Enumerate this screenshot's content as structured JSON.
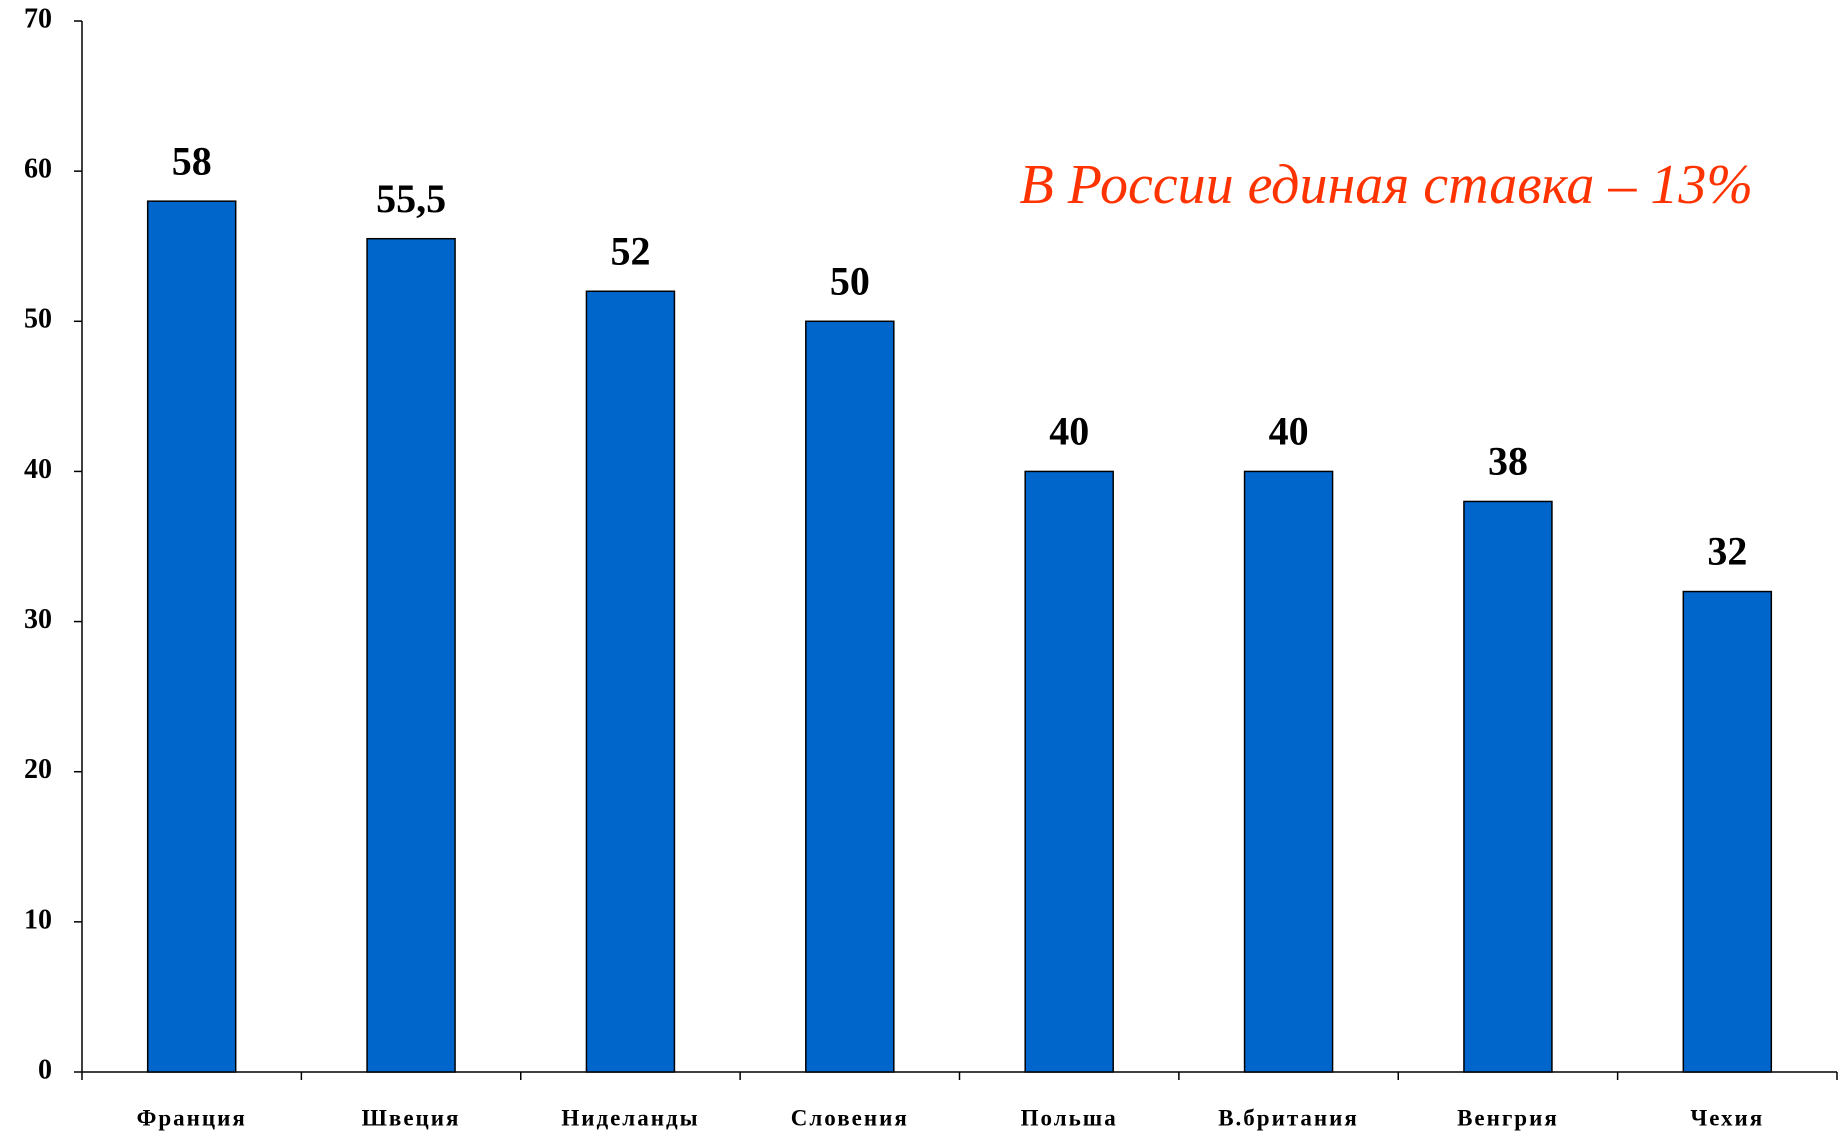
{
  "chart_data": {
    "type": "bar",
    "annotation": "В России единая ставка – 13%",
    "categories": [
      "Франция",
      "Швеция",
      "Ниделанды",
      "Словения",
      "Польша",
      "В.британия",
      "Венгрия",
      "Чехия"
    ],
    "values": [
      58,
      55.5,
      52,
      50,
      40,
      40,
      38,
      32
    ],
    "value_labels": [
      "58",
      "55,5",
      "52",
      "50",
      "40",
      "40",
      "38",
      "32"
    ],
    "color": "#0066cc",
    "ylim": [
      0,
      70
    ],
    "yticks": [
      0,
      10,
      20,
      30,
      40,
      50,
      60,
      70
    ],
    "grid": false
  }
}
